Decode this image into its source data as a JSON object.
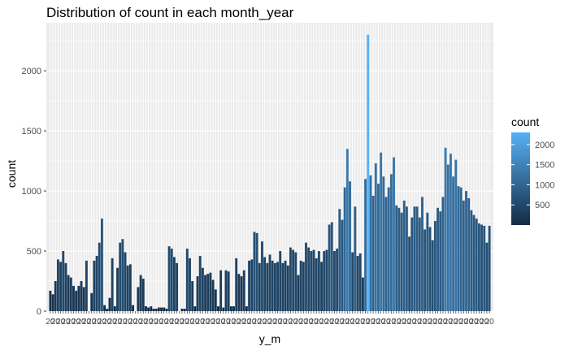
{
  "chart_data": {
    "type": "bar",
    "title": "Distribution of count in each month_year",
    "xlabel": "y_m",
    "ylabel": "count",
    "ylim": [
      0,
      2400
    ],
    "y_ticks": [
      0,
      500,
      1000,
      1500,
      2000
    ],
    "x_tick_labels_note": "x tick labels are overlapping and illegible (each begins with \"20\")",
    "grid": true,
    "background": "#EBEBEB",
    "grid_color": "#FFFFFF",
    "legend": {
      "title": "count",
      "position": "right",
      "breaks": [
        500,
        1000,
        1500,
        2000
      ],
      "low_color": "#132B43",
      "high_color": "#56B1F7"
    },
    "values": [
      170,
      140,
      250,
      430,
      410,
      500,
      400,
      300,
      280,
      210,
      170,
      210,
      250,
      200,
      420,
      0,
      150,
      420,
      460,
      570,
      770,
      50,
      20,
      110,
      440,
      40,
      360,
      570,
      600,
      490,
      380,
      390,
      50,
      0,
      200,
      300,
      270,
      40,
      30,
      40,
      20,
      20,
      30,
      30,
      30,
      20,
      540,
      520,
      450,
      400,
      0,
      20,
      20,
      520,
      440,
      250,
      40,
      290,
      460,
      360,
      300,
      310,
      320,
      260,
      180,
      40,
      340,
      30,
      340,
      330,
      40,
      40,
      440,
      310,
      290,
      340,
      40,
      420,
      430,
      660,
      650,
      400,
      580,
      450,
      400,
      470,
      420,
      400,
      410,
      500,
      400,
      420,
      380,
      530,
      510,
      490,
      300,
      420,
      410,
      570,
      530,
      500,
      510,
      440,
      500,
      410,
      500,
      510,
      720,
      740,
      500,
      520,
      850,
      760,
      1030,
      1350,
      1080,
      490,
      870,
      460,
      480,
      280,
      1100,
      2300,
      1130,
      960,
      1230,
      1060,
      1320,
      1120,
      950,
      1030,
      1140,
      1280,
      880,
      860,
      820,
      920,
      870,
      620,
      780,
      870,
      870,
      780,
      950,
      680,
      820,
      700,
      590,
      750,
      860,
      830,
      950,
      1360,
      1220,
      1310,
      1120,
      1260,
      1040,
      1030,
      920,
      1000,
      940,
      840,
      800,
      770,
      730,
      720,
      710,
      570,
      710
    ]
  }
}
